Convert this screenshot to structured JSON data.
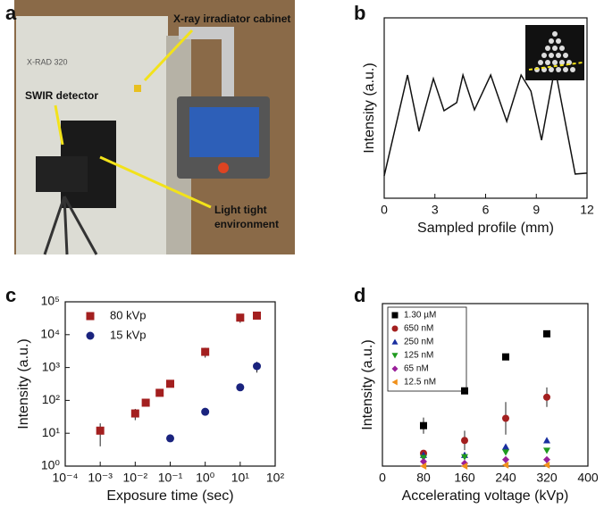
{
  "panel_labels": [
    "a",
    "b",
    "c",
    "d"
  ],
  "photo": {
    "cabinet_label": "X-ray irradiator cabinet",
    "model": "X-RAD 320",
    "detector_label": "SWIR detector",
    "enclosure_label": [
      "Light tight",
      "environment"
    ]
  },
  "chart_data": [
    {
      "type": "line",
      "xlabel": "Sampled profile (mm)",
      "ylabel": "Intensity (a.u.)",
      "x": [
        0,
        1.38,
        2.06,
        2.91,
        3.54,
        4.29,
        4.66,
        5.34,
        6.3,
        7.25,
        8.1,
        8.68,
        9.31,
        10.1,
        11.3,
        12.0
      ],
      "series": [
        {
          "color": "#111111",
          "values": [
            1.24,
            6.83,
            3.71,
            6.63,
            4.85,
            5.3,
            6.83,
            4.9,
            6.83,
            4.26,
            6.83,
            5.94,
            3.22,
            7.23,
            1.34,
            1.39
          ]
        }
      ],
      "xlim": [
        0,
        12
      ],
      "ylim": [
        0,
        10
      ],
      "xticks": [
        0,
        3,
        6,
        9,
        12
      ]
    },
    {
      "type": "scatter",
      "xlabel": "Exposure time (sec)",
      "ylabel": "Intensity (a.u.)",
      "xscale": "log",
      "yscale": "log",
      "legend": "upper left",
      "series": [
        {
          "name": "80 kVp",
          "color": "#a31f1f",
          "marker": "square",
          "x": [
            0.001,
            0.01,
            0.02,
            0.05,
            0.1,
            1,
            10,
            30
          ],
          "values": [
            12,
            40,
            85,
            170,
            320,
            3000,
            33000,
            38000
          ],
          "errors": [
            8,
            15,
            null,
            null,
            null,
            1000,
            10000,
            null
          ]
        },
        {
          "name": "15 kVp",
          "color": "#1a237e",
          "marker": "circle",
          "x": [
            0.1,
            1,
            10,
            30
          ],
          "values": [
            7,
            45,
            250,
            1100
          ],
          "errors": [
            null,
            null,
            null,
            400
          ]
        }
      ],
      "xlim": [
        0.0001,
        100
      ],
      "ylim": [
        1,
        100000
      ],
      "xticks": [
        {
          "value": 0.0001,
          "label": "10⁻⁴"
        },
        {
          "value": 0.001,
          "label": "10⁻³"
        },
        {
          "value": 0.01,
          "label": "10⁻²"
        },
        {
          "value": 0.1,
          "label": "10⁻¹"
        },
        {
          "value": 1,
          "label": "10⁰"
        },
        {
          "value": 10,
          "label": "10¹"
        },
        {
          "value": 100,
          "label": "10²"
        }
      ],
      "yticks": [
        {
          "value": 1,
          "label": "10⁰"
        },
        {
          "value": 10,
          "label": "10¹"
        },
        {
          "value": 100,
          "label": "10²"
        },
        {
          "value": 1000,
          "label": "10³"
        },
        {
          "value": 10000,
          "label": "10⁴"
        },
        {
          "value": 100000,
          "label": "10⁵"
        }
      ]
    },
    {
      "type": "scatter",
      "xlabel": "Accelerating voltage (kVp)",
      "ylabel": "Intensity (a.u.)",
      "legend": "upper left",
      "legend_frame": true,
      "x": [
        80,
        160,
        240,
        320
      ],
      "series": [
        {
          "name": "1.30 µM",
          "color": "#000000",
          "marker": "square",
          "values": [
            2.49,
            4.63,
            6.72,
            8.14
          ],
          "errors": [
            0.5,
            null,
            null,
            null
          ]
        },
        {
          "name": "650 nM",
          "color": "#a31f1f",
          "marker": "circle",
          "values": [
            0.79,
            1.58,
            2.94,
            4.24
          ],
          "errors": [
            null,
            0.6,
            1.0,
            0.6
          ]
        },
        {
          "name": "250 nM",
          "color": "#1a2fa0",
          "marker": "triangle-up",
          "values": [
            0.68,
            0.68,
            1.19,
            1.58
          ]
        },
        {
          "name": "125 nM",
          "color": "#1f9a1f",
          "marker": "triangle-down",
          "values": [
            0.51,
            0.56,
            0.85,
            0.96
          ]
        },
        {
          "name": "65 nM",
          "color": "#9a1f9a",
          "marker": "diamond",
          "values": [
            0.28,
            0.17,
            0.4,
            0.4
          ]
        },
        {
          "name": "12.5 nM",
          "color": "#f0901a",
          "marker": "triangle-left",
          "values": [
            0,
            0,
            0.06,
            0.06
          ]
        }
      ],
      "xlim": [
        0,
        400
      ],
      "ylim": [
        0,
        10
      ],
      "xticks": [
        0,
        80,
        160,
        240,
        320,
        400
      ]
    }
  ]
}
